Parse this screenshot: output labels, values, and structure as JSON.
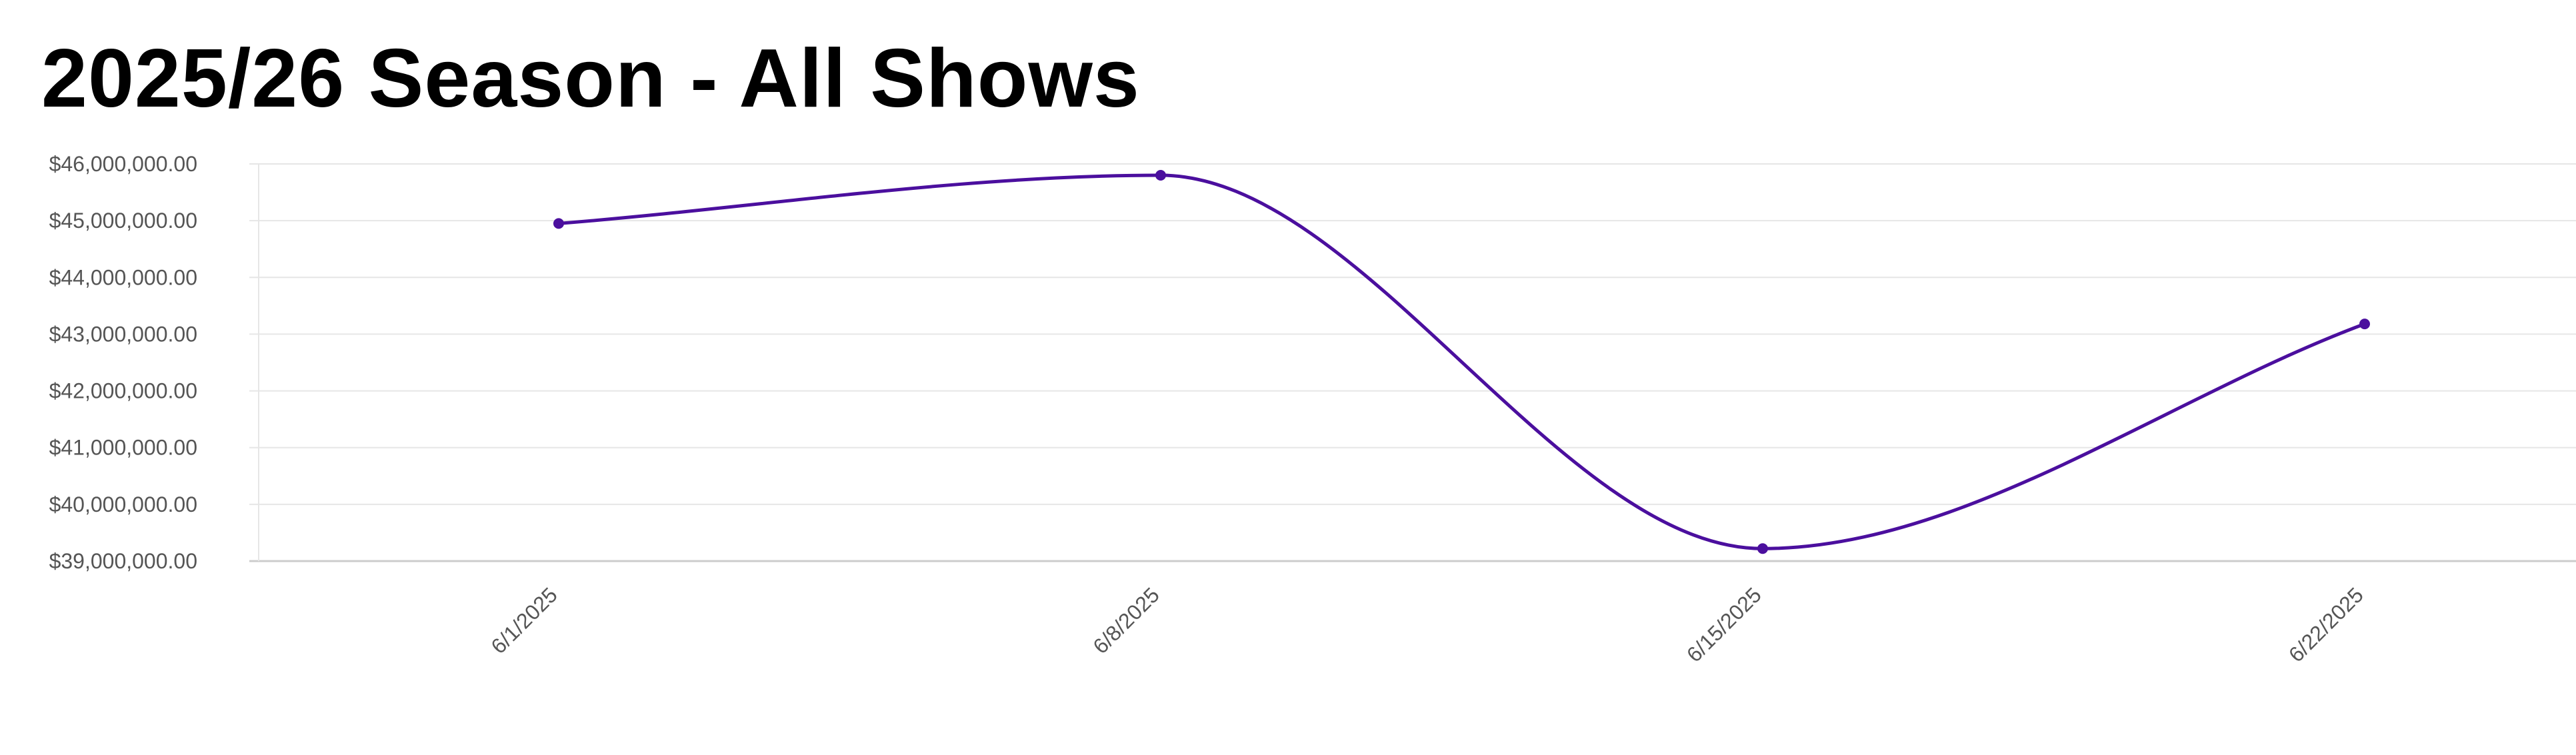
{
  "page": {
    "title": "2025/26 Season - All Shows"
  },
  "colors": {
    "line": "#4b0f9e",
    "grid": "#e6e6e6",
    "axis": "#cccccc",
    "tick_text": "#555555",
    "title": "#000000"
  },
  "chart_data": {
    "type": "line",
    "title": "2025/26 Season - All Shows",
    "xlabel": "",
    "ylabel": "",
    "categories": [
      "6/1/2025",
      "6/8/2025",
      "6/15/2025",
      "6/22/2025"
    ],
    "series": [
      {
        "values": [
          44950000,
          45800000,
          39220000,
          43180000
        ]
      }
    ],
    "ylim": [
      39000000,
      46000000
    ],
    "y_ticks": [
      39000000,
      40000000,
      41000000,
      42000000,
      43000000,
      44000000,
      45000000,
      46000000
    ],
    "y_tick_labels": [
      "$39,000,000.00",
      "$40,000,000.00",
      "$41,000,000.00",
      "$42,000,000.00",
      "$43,000,000.00",
      "$44,000,000.00",
      "$45,000,000.00",
      "$46,000,000.00"
    ],
    "grid": true,
    "legend": "none",
    "curve": "smooth"
  }
}
